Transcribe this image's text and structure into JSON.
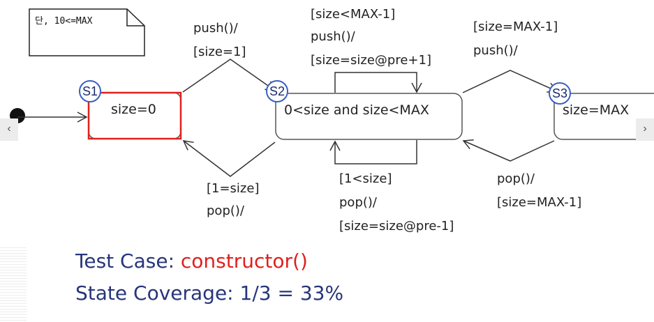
{
  "note": {
    "text": "단, 10<=MAX"
  },
  "states": {
    "s1": {
      "badge": "S1",
      "label": "size=0"
    },
    "s2": {
      "badge": "S2",
      "label": "0<size and size<MAX"
    },
    "s3": {
      "badge": "S3",
      "label": "size=MAX"
    }
  },
  "transitions": {
    "s1_to_s2": {
      "line1": "push()/",
      "line2": "[size=1]"
    },
    "s2_to_s1": {
      "line1": "[1=size]",
      "line2": "pop()/"
    },
    "s2_self_push": {
      "line1": "[size<MAX-1]",
      "line2": "push()/",
      "line3": "[size=size@pre+1]"
    },
    "s2_self_pop": {
      "line1": "[1<size]",
      "line2": "pop()/",
      "line3": "[size=size@pre-1]"
    },
    "s2_to_s3": {
      "line1": "[size=MAX-1]",
      "line2": "push()/"
    },
    "s3_to_s2": {
      "line1": "pop()/",
      "line2": "[size=MAX-1]"
    }
  },
  "footer": {
    "test_case_label": "Test Case: ",
    "test_case_value": "constructor()",
    "coverage_label": "State Coverage: ",
    "coverage_value": "1/3 = 33%"
  },
  "nav": {
    "prev_icon": "‹",
    "next_icon": "›"
  },
  "colors": {
    "highlight": "#e0201c",
    "badge_border": "#3a5fc4",
    "text_blue": "#27357a"
  }
}
